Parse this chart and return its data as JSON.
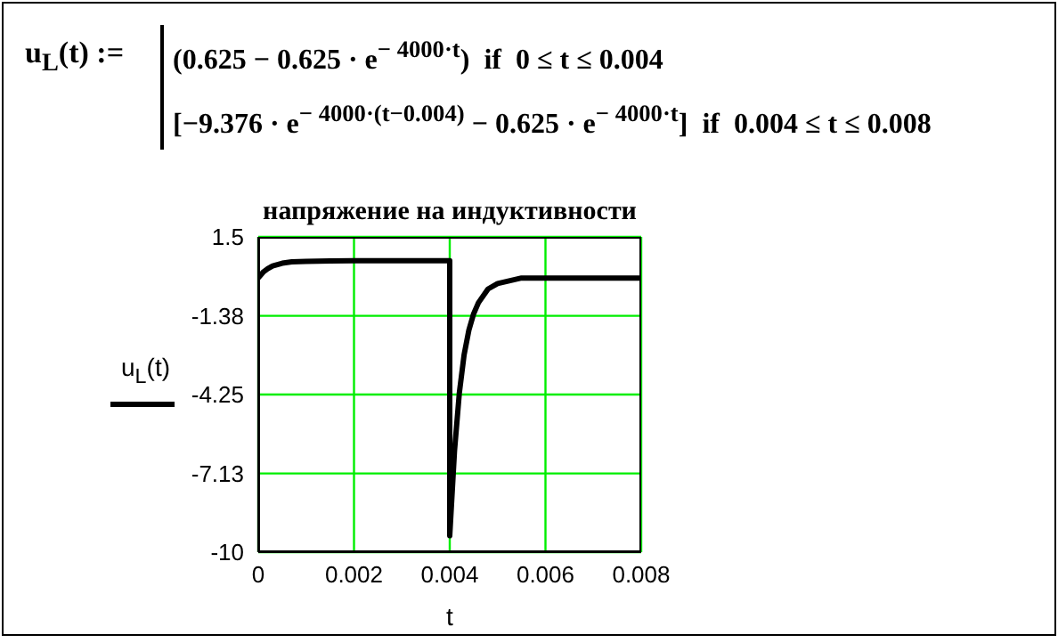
{
  "chart_data": {
    "type": "line",
    "title": "напряжение на индуктивности",
    "xlabel": "t",
    "annotations": [
      "u$_{L}$(t) :=",
      "(0.625 − 0.625 · e$^{− 4000·t}$)  if  0 ≤ t ≤ 0.004",
      "[−9.376 · e$^{− 4000·(t−0.004)}$ − 0.625 · e$^{− 4000·t}$]  if  0.004 ≤ t ≤ 0.008"
    ],
    "x": [
      0,
      0.0001,
      0.0002,
      0.0003,
      0.0005,
      0.0007,
      0.001,
      0.0015,
      0.002,
      0.003,
      0.004,
      0.004,
      0.0041,
      0.0042,
      0.0043,
      0.0044,
      0.0045,
      0.0046,
      0.0048,
      0.005,
      0.0055,
      0.006,
      0.007,
      0.008
    ],
    "series": [
      {
        "name": "u$_{L}$(t)",
        "color": "#000000",
        "values": [
          0,
          0.21,
          0.34,
          0.44,
          0.54,
          0.59,
          0.61,
          0.62,
          0.63,
          0.63,
          0.63,
          -9.4,
          -6.3,
          -4.2,
          -2.8,
          -1.9,
          -1.3,
          -0.9,
          -0.4,
          -0.2,
          0,
          0,
          0,
          0
        ]
      }
    ],
    "xlim": [
      0,
      0.008
    ],
    "xticks": [
      0,
      0.002,
      0.004,
      0.006,
      0.008
    ],
    "ylim": [
      -10,
      1.5
    ],
    "yticks": [
      1.5,
      -1.38,
      -4.25,
      -7.13,
      -10
    ],
    "grid": true,
    "legend": "left"
  }
}
